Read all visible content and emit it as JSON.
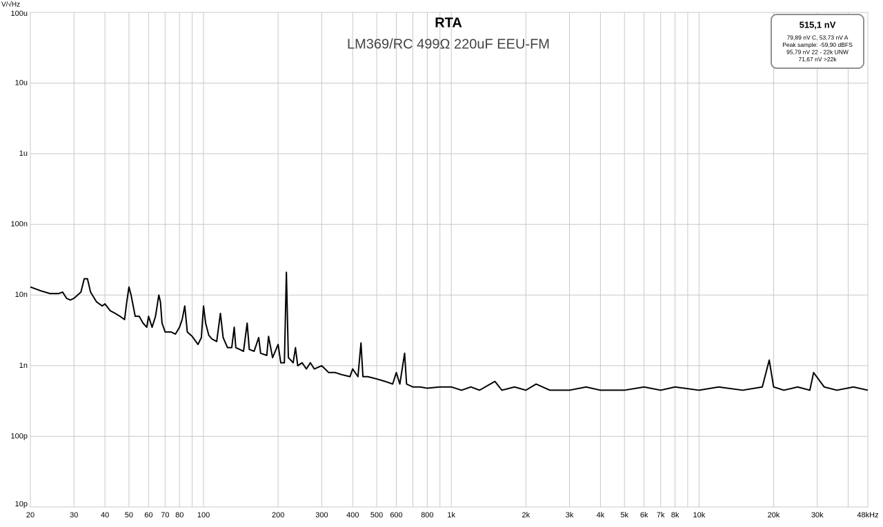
{
  "chart_data": {
    "type": "line",
    "title": "RTA",
    "subtitle": "LM369/RC 499Ω 220uF EEU-FM",
    "y_label": "V/√Hz",
    "log_x": true,
    "log_y": true,
    "grid": true,
    "xlim": [
      20,
      48000
    ],
    "ylim": [
      1e-11,
      0.0001
    ],
    "xticks": [
      20,
      30,
      40,
      50,
      60,
      70,
      80,
      100,
      200,
      300,
      400,
      500,
      600,
      800,
      {
        "value": 1000,
        "label": "1k"
      },
      {
        "value": 2000,
        "label": "2k"
      },
      {
        "value": 3000,
        "label": "3k"
      },
      {
        "value": 4000,
        "label": "4k"
      },
      {
        "value": 5000,
        "label": "5k"
      },
      {
        "value": 6000,
        "label": "6k"
      },
      {
        "value": 7000,
        "label": "7k"
      },
      {
        "value": 8000,
        "label": "8k"
      },
      {
        "value": 10000,
        "label": "10k"
      },
      {
        "value": 20000,
        "label": "20k"
      },
      {
        "value": 30000,
        "label": "30k"
      },
      {
        "value": 48000,
        "label": "48kHz"
      }
    ],
    "xgrid_minor": [
      90,
      700,
      900,
      9000,
      40000
    ],
    "yticks": [
      {
        "value": 0.0001,
        "label": "100u"
      },
      {
        "value": 1e-05,
        "label": "10u"
      },
      {
        "value": 1e-06,
        "label": "1u"
      },
      {
        "value": 1e-07,
        "label": "100n"
      },
      {
        "value": 1e-08,
        "label": "10n"
      },
      {
        "value": 1e-09,
        "label": "1n"
      },
      {
        "value": 1e-10,
        "label": "100p"
      },
      {
        "value": 1e-11,
        "label": "10p"
      }
    ],
    "x": [
      20,
      22,
      24,
      26,
      27,
      28,
      29,
      30,
      32,
      33,
      34,
      35,
      37,
      39,
      40,
      42,
      44,
      46,
      48,
      49,
      50,
      51,
      53,
      55,
      57,
      59,
      60,
      62,
      64,
      66,
      67,
      68,
      70,
      74,
      77,
      80,
      82,
      84,
      86,
      90,
      95,
      98,
      100,
      102,
      105,
      108,
      113,
      117,
      120,
      125,
      130,
      133,
      135,
      140,
      145,
      150,
      153,
      160,
      167,
      170,
      180,
      183,
      190,
      200,
      205,
      212,
      216,
      220,
      230,
      235,
      240,
      250,
      260,
      270,
      280,
      300,
      320,
      340,
      360,
      390,
      400,
      420,
      432,
      440,
      460,
      500,
      540,
      580,
      600,
      620,
      648,
      660,
      700,
      750,
      800,
      900,
      1000,
      1100,
      1200,
      1300,
      1500,
      1600,
      1800,
      2000,
      2200,
      2500,
      3000,
      3500,
      4000,
      5000,
      6000,
      7000,
      8000,
      10000,
      12000,
      15000,
      18000,
      19200,
      20000,
      22000,
      25000,
      28000,
      29000,
      32000,
      36000,
      42000,
      48000
    ],
    "series": [
      {
        "color": "#000000",
        "values": [
          1.3e-08,
          1.15e-08,
          1.05e-08,
          1.05e-08,
          1.1e-08,
          9e-09,
          8.5e-09,
          9e-09,
          1.1e-08,
          1.7e-08,
          1.7e-08,
          1.1e-08,
          8e-09,
          7e-09,
          7.5e-09,
          6e-09,
          5.5e-09,
          5e-09,
          4.5e-09,
          8e-09,
          1.3e-08,
          1e-08,
          5e-09,
          5e-09,
          4e-09,
          3.5e-09,
          5e-09,
          3.5e-09,
          5e-09,
          1e-08,
          8e-09,
          4e-09,
          3e-09,
          3e-09,
          2.8e-09,
          3.5e-09,
          4.5e-09,
          7e-09,
          3e-09,
          2.6e-09,
          2e-09,
          2.5e-09,
          7e-09,
          4e-09,
          2.7e-09,
          2.4e-09,
          2.2e-09,
          5.5e-09,
          2.5e-09,
          1.8e-09,
          1.8e-09,
          3.5e-09,
          1.8e-09,
          1.7e-09,
          1.6e-09,
          4e-09,
          1.7e-09,
          1.6e-09,
          2.5e-09,
          1.5e-09,
          1.4e-09,
          2.6e-09,
          1.3e-09,
          2e-09,
          1.1e-09,
          1.1e-09,
          2.1e-08,
          1.3e-09,
          1.1e-09,
          1.8e-09,
          1e-09,
          1.1e-09,
          9e-10,
          1.1e-09,
          9e-10,
          1e-09,
          8e-10,
          8e-10,
          7.5e-10,
          7e-10,
          9e-10,
          7e-10,
          2.1e-09,
          7e-10,
          7e-10,
          6.5e-10,
          6e-10,
          5.5e-10,
          8e-10,
          5.5e-10,
          1.5e-09,
          5.5e-10,
          5e-10,
          5e-10,
          4.8e-10,
          5e-10,
          5e-10,
          4.5e-10,
          5e-10,
          4.5e-10,
          6e-10,
          4.5e-10,
          5e-10,
          4.5e-10,
          5.5e-10,
          4.5e-10,
          4.5e-10,
          5e-10,
          4.5e-10,
          4.5e-10,
          5e-10,
          4.5e-10,
          5e-10,
          4.5e-10,
          5e-10,
          4.5e-10,
          5e-10,
          1.2e-09,
          5e-10,
          4.5e-10,
          5e-10,
          4.5e-10,
          8e-10,
          5e-10,
          4.5e-10,
          5e-10,
          4.5e-10
        ]
      }
    ]
  },
  "readout": {
    "main": "515,1 nV",
    "lines": [
      "79,89 nV C, 53,73 nV A",
      "Peak sample: -59,90 dBFS",
      "95,79 nV 22 - 22k UNW",
      "71,67 nV >22k"
    ]
  }
}
